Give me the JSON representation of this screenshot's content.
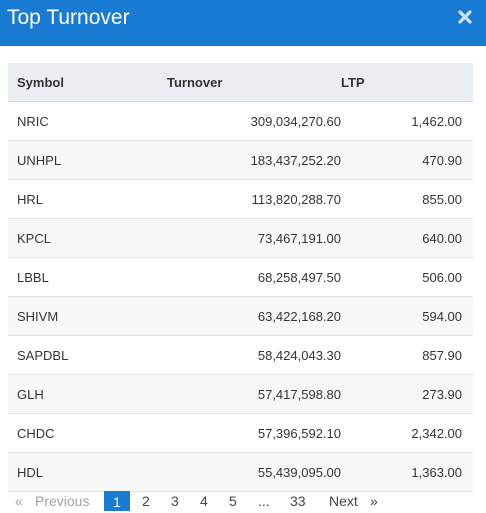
{
  "dialog": {
    "title": "Top Turnover",
    "close_icon": "close-icon"
  },
  "table": {
    "headers": {
      "symbol": "Symbol",
      "turnover": "Turnover",
      "ltp": "LTP"
    },
    "rows": [
      {
        "symbol": "NRIC",
        "turnover": "309,034,270.60",
        "ltp": "1,462.00"
      },
      {
        "symbol": "UNHPL",
        "turnover": "183,437,252.20",
        "ltp": "470.90"
      },
      {
        "symbol": "HRL",
        "turnover": "113,820,288.70",
        "ltp": "855.00"
      },
      {
        "symbol": "KPCL",
        "turnover": "73,467,191.00",
        "ltp": "640.00"
      },
      {
        "symbol": "LBBL",
        "turnover": "68,258,497.50",
        "ltp": "506.00"
      },
      {
        "symbol": "SHIVM",
        "turnover": "63,422,168.20",
        "ltp": "594.00"
      },
      {
        "symbol": "SAPDBL",
        "turnover": "58,424,043.30",
        "ltp": "857.90"
      },
      {
        "symbol": "GLH",
        "turnover": "57,417,598.80",
        "ltp": "273.90"
      },
      {
        "symbol": "CHDC",
        "turnover": "57,396,592.10",
        "ltp": "2,342.00"
      },
      {
        "symbol": "HDL",
        "turnover": "55,439,095.00",
        "ltp": "1,363.00"
      }
    ]
  },
  "pagination": {
    "first": "«",
    "previous": "Previous",
    "pages": [
      "1",
      "2",
      "3",
      "4",
      "5"
    ],
    "ellipsis": "...",
    "last_page": "33",
    "next": "Next",
    "last": "»",
    "current": "1"
  },
  "colors": {
    "header_bg": "#1a7bd3",
    "table_header_bg": "#eaedf1",
    "active_page_bg": "#1a7bd3"
  }
}
